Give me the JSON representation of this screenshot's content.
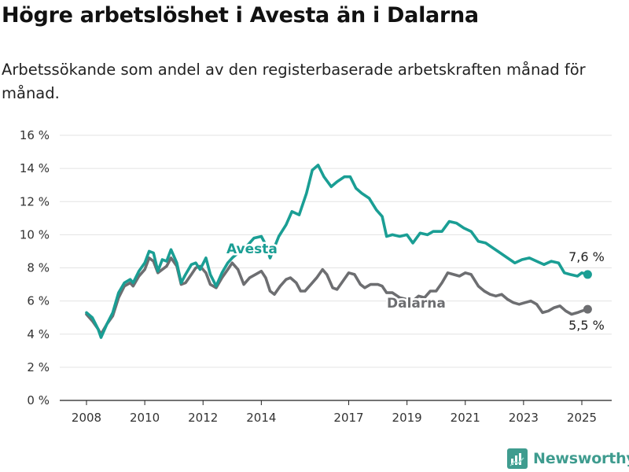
{
  "title": "Högre arbetslöshet i Avesta än i Dalarna",
  "subtitle": "Arbetssökande som andel av den registerbaserade arbetskraften månad för månad.",
  "brand": {
    "name": "Newsworthy",
    "icon": "bar-chart-logo-icon",
    "color": "#3f9c8f"
  },
  "chart_data": {
    "type": "line",
    "y_ticks": [
      "0 %",
      "2 %",
      "4 %",
      "6 %",
      "8 %",
      "10 %",
      "12 %",
      "14 %",
      "16 %"
    ],
    "x_ticks": [
      "2008",
      "2010",
      "2012",
      "2014",
      "2017",
      "2019",
      "2021",
      "2023",
      "2025"
    ],
    "x_tick_values": [
      2008,
      2010,
      2012,
      2014,
      2017,
      2019,
      2021,
      2023,
      2025
    ],
    "ylim": [
      0,
      16
    ],
    "xlim": [
      2007.1,
      2026.0
    ],
    "grid": true,
    "series": [
      {
        "name": "Avesta",
        "color": "#1a9e94",
        "end_label": "7,6 %",
        "points": [
          [
            2008.0,
            5.3
          ],
          [
            2008.2,
            5.0
          ],
          [
            2008.4,
            4.3
          ],
          [
            2008.5,
            3.8
          ],
          [
            2008.7,
            4.6
          ],
          [
            2008.9,
            5.3
          ],
          [
            2009.1,
            6.5
          ],
          [
            2009.3,
            7.1
          ],
          [
            2009.5,
            7.3
          ],
          [
            2009.6,
            7.1
          ],
          [
            2009.8,
            7.8
          ],
          [
            2010.0,
            8.3
          ],
          [
            2010.15,
            9.0
          ],
          [
            2010.3,
            8.9
          ],
          [
            2010.45,
            7.8
          ],
          [
            2010.6,
            8.5
          ],
          [
            2010.75,
            8.4
          ],
          [
            2010.9,
            9.1
          ],
          [
            2011.1,
            8.3
          ],
          [
            2011.25,
            7.1
          ],
          [
            2011.4,
            7.6
          ],
          [
            2011.6,
            8.2
          ],
          [
            2011.75,
            8.3
          ],
          [
            2011.9,
            7.9
          ],
          [
            2012.1,
            8.6
          ],
          [
            2012.25,
            7.6
          ],
          [
            2012.45,
            6.9
          ],
          [
            2012.65,
            7.7
          ],
          [
            2012.85,
            8.3
          ],
          [
            2013.0,
            8.6
          ],
          [
            2013.2,
            8.9
          ],
          [
            2013.5,
            9.3
          ],
          [
            2013.75,
            9.8
          ],
          [
            2014.0,
            9.9
          ],
          [
            2014.15,
            9.4
          ],
          [
            2014.3,
            8.6
          ],
          [
            2014.6,
            9.9
          ],
          [
            2014.85,
            10.6
          ],
          [
            2015.05,
            11.4
          ],
          [
            2015.3,
            11.2
          ],
          [
            2015.55,
            12.5
          ],
          [
            2015.75,
            13.9
          ],
          [
            2015.95,
            14.2
          ],
          [
            2016.15,
            13.5
          ],
          [
            2016.4,
            12.9
          ],
          [
            2016.6,
            13.2
          ],
          [
            2016.85,
            13.5
          ],
          [
            2017.05,
            13.5
          ],
          [
            2017.25,
            12.8
          ],
          [
            2017.45,
            12.5
          ],
          [
            2017.7,
            12.2
          ],
          [
            2017.95,
            11.5
          ],
          [
            2018.15,
            11.1
          ],
          [
            2018.3,
            9.9
          ],
          [
            2018.5,
            10.0
          ],
          [
            2018.75,
            9.9
          ],
          [
            2019.0,
            10.0
          ],
          [
            2019.2,
            9.5
          ],
          [
            2019.45,
            10.1
          ],
          [
            2019.7,
            10.0
          ],
          [
            2019.9,
            10.2
          ],
          [
            2020.2,
            10.2
          ],
          [
            2020.45,
            10.8
          ],
          [
            2020.7,
            10.7
          ],
          [
            2020.95,
            10.4
          ],
          [
            2021.2,
            10.2
          ],
          [
            2021.45,
            9.6
          ],
          [
            2021.7,
            9.5
          ],
          [
            2021.95,
            9.2
          ],
          [
            2022.2,
            8.9
          ],
          [
            2022.45,
            8.6
          ],
          [
            2022.7,
            8.3
          ],
          [
            2022.95,
            8.5
          ],
          [
            2023.2,
            8.6
          ],
          [
            2023.45,
            8.4
          ],
          [
            2023.7,
            8.2
          ],
          [
            2023.95,
            8.4
          ],
          [
            2024.2,
            8.3
          ],
          [
            2024.4,
            7.7
          ],
          [
            2024.6,
            7.6
          ],
          [
            2024.85,
            7.5
          ],
          [
            2025.0,
            7.7
          ],
          [
            2025.2,
            7.6
          ]
        ]
      },
      {
        "name": "Dalarna",
        "color": "#6d6e71",
        "end_label": "5,5 %",
        "points": [
          [
            2008.0,
            5.2
          ],
          [
            2008.2,
            4.8
          ],
          [
            2008.4,
            4.3
          ],
          [
            2008.5,
            4.0
          ],
          [
            2008.7,
            4.6
          ],
          [
            2008.9,
            5.1
          ],
          [
            2009.1,
            6.2
          ],
          [
            2009.3,
            6.9
          ],
          [
            2009.5,
            7.1
          ],
          [
            2009.6,
            6.9
          ],
          [
            2009.8,
            7.5
          ],
          [
            2010.0,
            7.9
          ],
          [
            2010.15,
            8.6
          ],
          [
            2010.3,
            8.4
          ],
          [
            2010.45,
            7.7
          ],
          [
            2010.6,
            7.9
          ],
          [
            2010.75,
            8.1
          ],
          [
            2010.9,
            8.6
          ],
          [
            2011.1,
            8.1
          ],
          [
            2011.25,
            7.0
          ],
          [
            2011.4,
            7.1
          ],
          [
            2011.6,
            7.6
          ],
          [
            2011.75,
            8.0
          ],
          [
            2011.9,
            8.1
          ],
          [
            2012.1,
            7.7
          ],
          [
            2012.25,
            7.0
          ],
          [
            2012.45,
            6.8
          ],
          [
            2012.65,
            7.4
          ],
          [
            2012.85,
            7.9
          ],
          [
            2013.0,
            8.3
          ],
          [
            2013.2,
            7.9
          ],
          [
            2013.4,
            7.0
          ],
          [
            2013.6,
            7.4
          ],
          [
            2013.8,
            7.6
          ],
          [
            2014.0,
            7.8
          ],
          [
            2014.15,
            7.4
          ],
          [
            2014.3,
            6.6
          ],
          [
            2014.45,
            6.4
          ],
          [
            2014.65,
            6.9
          ],
          [
            2014.85,
            7.3
          ],
          [
            2015.0,
            7.4
          ],
          [
            2015.2,
            7.1
          ],
          [
            2015.35,
            6.6
          ],
          [
            2015.5,
            6.6
          ],
          [
            2015.7,
            7.0
          ],
          [
            2015.9,
            7.4
          ],
          [
            2016.1,
            7.9
          ],
          [
            2016.25,
            7.6
          ],
          [
            2016.45,
            6.8
          ],
          [
            2016.6,
            6.7
          ],
          [
            2016.8,
            7.2
          ],
          [
            2017.0,
            7.7
          ],
          [
            2017.2,
            7.6
          ],
          [
            2017.4,
            7.0
          ],
          [
            2017.55,
            6.8
          ],
          [
            2017.75,
            7.0
          ],
          [
            2018.0,
            7.0
          ],
          [
            2018.15,
            6.9
          ],
          [
            2018.3,
            6.5
          ],
          [
            2018.5,
            6.5
          ],
          [
            2018.75,
            6.2
          ],
          [
            2019.0,
            6.1
          ],
          [
            2019.2,
            6.0
          ],
          [
            2019.4,
            6.3
          ],
          [
            2019.6,
            6.2
          ],
          [
            2019.8,
            6.6
          ],
          [
            2020.0,
            6.6
          ],
          [
            2020.2,
            7.1
          ],
          [
            2020.4,
            7.7
          ],
          [
            2020.6,
            7.6
          ],
          [
            2020.8,
            7.5
          ],
          [
            2021.0,
            7.7
          ],
          [
            2021.2,
            7.6
          ],
          [
            2021.45,
            6.9
          ],
          [
            2021.65,
            6.6
          ],
          [
            2021.85,
            6.4
          ],
          [
            2022.05,
            6.3
          ],
          [
            2022.25,
            6.4
          ],
          [
            2022.45,
            6.1
          ],
          [
            2022.65,
            5.9
          ],
          [
            2022.85,
            5.8
          ],
          [
            2023.05,
            5.9
          ],
          [
            2023.25,
            6.0
          ],
          [
            2023.45,
            5.8
          ],
          [
            2023.65,
            5.3
          ],
          [
            2023.85,
            5.4
          ],
          [
            2024.05,
            5.6
          ],
          [
            2024.25,
            5.7
          ],
          [
            2024.45,
            5.4
          ],
          [
            2024.65,
            5.2
          ],
          [
            2024.85,
            5.3
          ],
          [
            2025.0,
            5.4
          ],
          [
            2025.2,
            5.5
          ]
        ]
      }
    ]
  }
}
